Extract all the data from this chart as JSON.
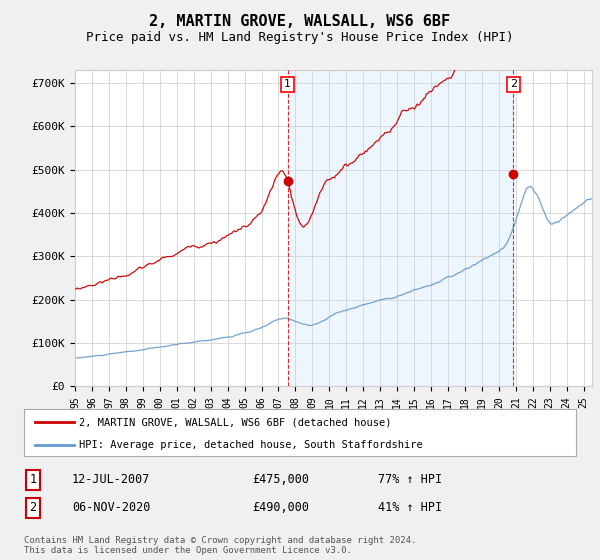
{
  "title": "2, MARTIN GROVE, WALSALL, WS6 6BF",
  "subtitle": "Price paid vs. HM Land Registry's House Price Index (HPI)",
  "title_fontsize": 11,
  "subtitle_fontsize": 9,
  "ylabel_ticks": [
    "£0",
    "£100K",
    "£200K",
    "£300K",
    "£400K",
    "£500K",
    "£600K",
    "£700K"
  ],
  "ytick_values": [
    0,
    100000,
    200000,
    300000,
    400000,
    500000,
    600000,
    700000
  ],
  "ylim": [
    0,
    730000
  ],
  "xlim_start": 1995.0,
  "xlim_end": 2025.5,
  "red_color": "#cc0000",
  "blue_color": "#6699cc",
  "blue_fill_color": "#ddeeff",
  "marker1_x": 2007.54,
  "marker1_y": 475000,
  "marker2_x": 2020.85,
  "marker2_y": 490000,
  "legend_entry1": "2, MARTIN GROVE, WALSALL, WS6 6BF (detached house)",
  "legend_entry2": "HPI: Average price, detached house, South Staffordshire",
  "table_row1": [
    "1",
    "12-JUL-2007",
    "£475,000",
    "77% ↑ HPI"
  ],
  "table_row2": [
    "2",
    "06-NOV-2020",
    "£490,000",
    "41% ↑ HPI"
  ],
  "footer": "Contains HM Land Registry data © Crown copyright and database right 2024.\nThis data is licensed under the Open Government Licence v3.0.",
  "bg_color": "#f0f0f0",
  "plot_bg_color": "#ffffff",
  "grid_color": "#cccccc"
}
